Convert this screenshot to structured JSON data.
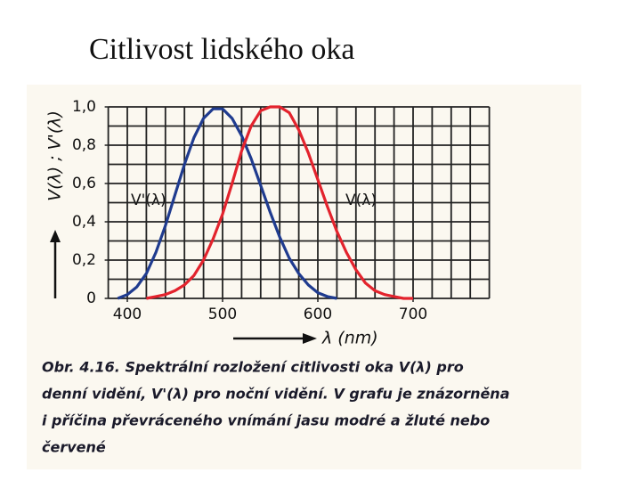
{
  "title": "Citlivost lidského oka",
  "chart_data": {
    "type": "line",
    "x": [
      390,
      400,
      410,
      420,
      430,
      440,
      450,
      460,
      470,
      480,
      490,
      500,
      510,
      520,
      530,
      540,
      550,
      560,
      570,
      580,
      590,
      600,
      610,
      620,
      630,
      640,
      650,
      660,
      670,
      680,
      690,
      700,
      710
    ],
    "series": [
      {
        "name": "V'(λ)",
        "color": "#1f3b8f",
        "values": [
          0,
          0.02,
          0.06,
          0.13,
          0.24,
          0.38,
          0.54,
          0.7,
          0.84,
          0.94,
          0.99,
          0.99,
          0.94,
          0.85,
          0.73,
          0.59,
          0.45,
          0.32,
          0.21,
          0.13,
          0.07,
          0.03,
          0.01,
          0,
          null,
          null,
          null,
          null,
          null,
          null,
          null,
          null,
          null
        ]
      },
      {
        "name": "V(λ)",
        "color": "#e3232d",
        "values": [
          null,
          null,
          null,
          0,
          0.01,
          0.02,
          0.04,
          0.07,
          0.12,
          0.2,
          0.31,
          0.44,
          0.6,
          0.77,
          0.9,
          0.98,
          1.0,
          1.0,
          0.97,
          0.88,
          0.76,
          0.62,
          0.48,
          0.35,
          0.24,
          0.15,
          0.08,
          0.04,
          0.02,
          0.01,
          0,
          0,
          null
        ]
      }
    ],
    "xlim": [
      380,
      780
    ],
    "ylim": [
      0,
      1
    ],
    "xticks": [
      400,
      500,
      600,
      700
    ],
    "yticks": [
      0,
      {
        "value": 0.2,
        "label": "0,2"
      },
      {
        "value": 0.4,
        "label": "0,4"
      },
      {
        "value": 0.6,
        "label": "0,6"
      },
      {
        "value": 0.8,
        "label": "0,8"
      },
      {
        "value": 1,
        "label": "1,0"
      }
    ],
    "grid": true,
    "xgrid_step": 20,
    "ygrid_step": 0.1,
    "xlabel": "λ (nm)",
    "ylabel": "V(λ) ; V'(λ)",
    "caption": [
      "Obr. 4.16. Spektrální rozložení citlivosti oka V(λ) pro",
      "denní vidění, V'(λ) pro noční vidění. V grafu je znázorněna",
      "i příčina převráceného vnímání jasu modré a žluté nebo",
      "červené"
    ]
  }
}
